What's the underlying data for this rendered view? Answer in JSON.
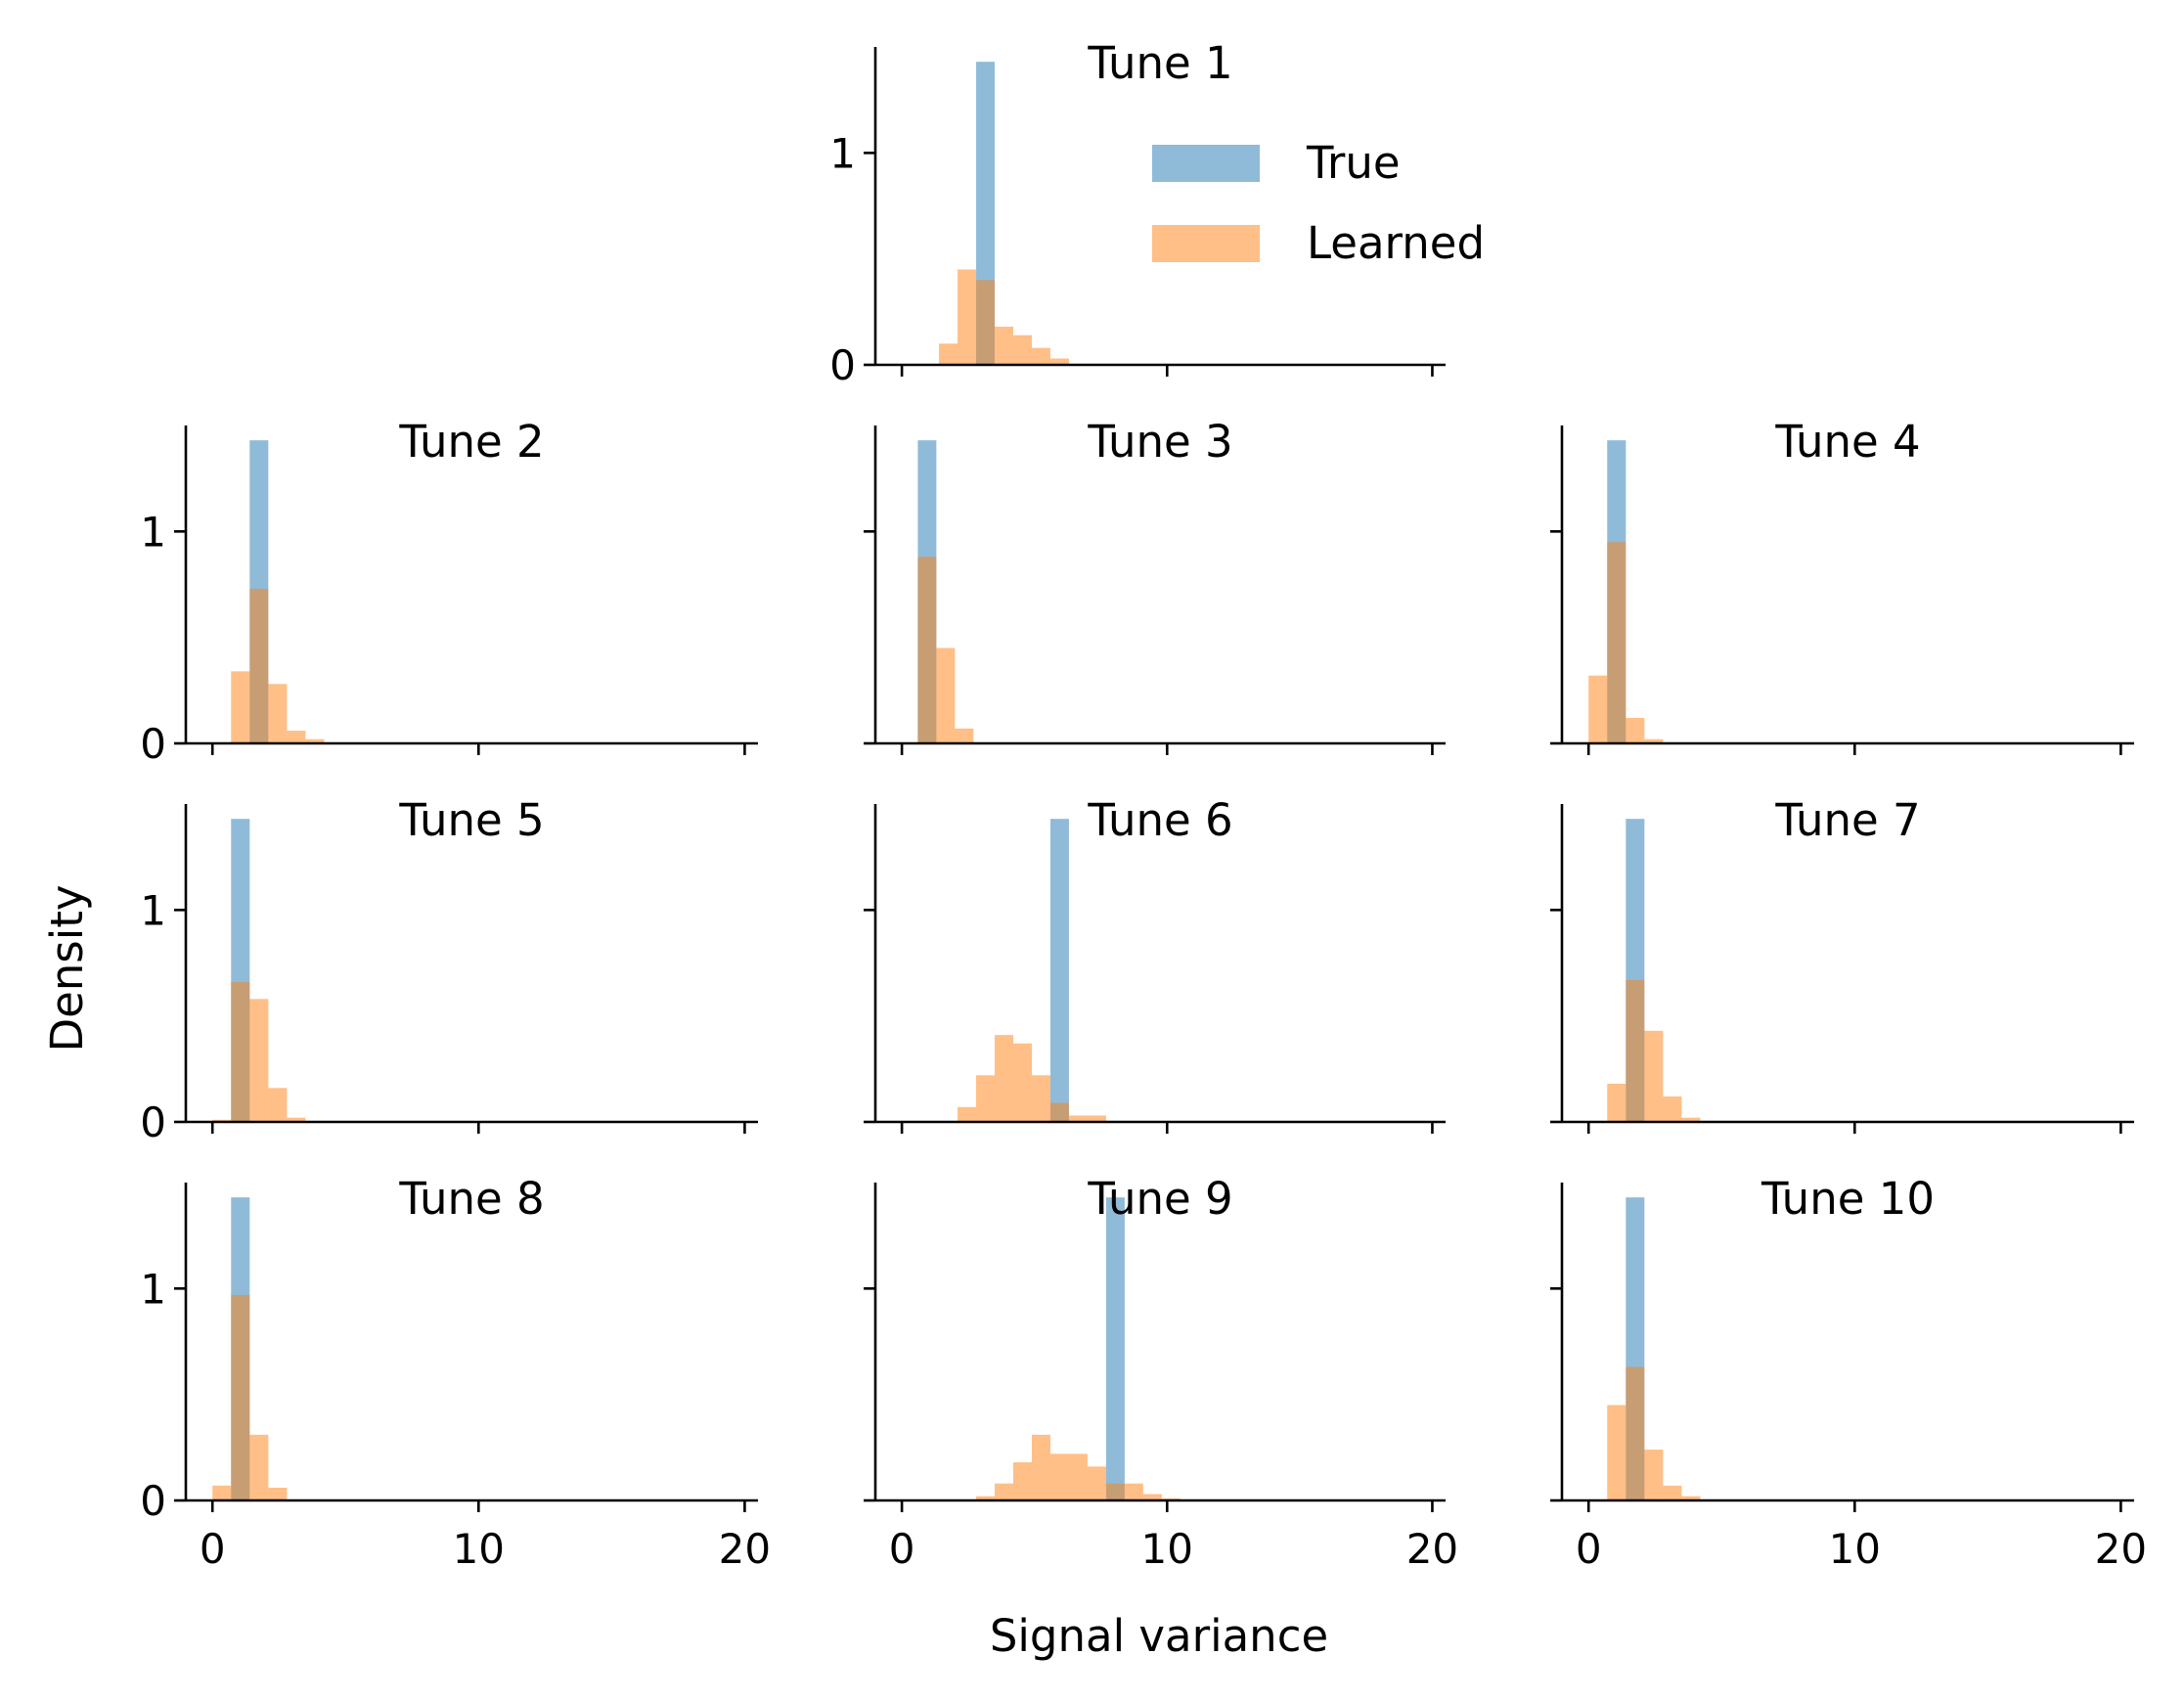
{
  "figure": {
    "xlabel": "Signal variance",
    "ylabel": "Density"
  },
  "legend": {
    "items": [
      {
        "label": "True",
        "color": "#1f77b4"
      },
      {
        "label": "Learned",
        "color": "#ff7f0e"
      }
    ],
    "placement": "upper-right of Tune 1 panel"
  },
  "chart_data": {
    "type": "histogram",
    "shared_axes": {
      "xlim": [
        -1,
        20.5
      ],
      "ylim": [
        0,
        1.5
      ],
      "xticks": [
        0,
        10,
        20
      ],
      "yticks": [
        0,
        1
      ],
      "bin_width": 0.7,
      "grid": false,
      "bar_opacity": 0.5
    },
    "series_colors": {
      "True": "#1f77b4",
      "Learned": "#ff7f0e"
    },
    "panels": [
      {
        "title": "Tune 1",
        "true_bins": [
          {
            "x": 2.8,
            "density": 1.43
          }
        ],
        "learned_bins": [
          [
            1.4,
            0.1
          ],
          [
            2.1,
            0.45
          ],
          [
            2.8,
            0.4
          ],
          [
            3.5,
            0.18
          ],
          [
            4.2,
            0.14
          ],
          [
            4.9,
            0.08
          ],
          [
            5.6,
            0.03
          ]
        ]
      },
      {
        "title": "Tune 2",
        "true_bins": [
          {
            "x": 1.4,
            "density": 1.43
          }
        ],
        "learned_bins": [
          [
            0.7,
            0.34
          ],
          [
            1.4,
            0.73
          ],
          [
            2.1,
            0.28
          ],
          [
            2.8,
            0.06
          ],
          [
            3.5,
            0.02
          ]
        ]
      },
      {
        "title": "Tune 3",
        "true_bins": [
          {
            "x": 0.6,
            "density": 1.43
          }
        ],
        "learned_bins": [
          [
            0.6,
            0.88
          ],
          [
            1.3,
            0.45
          ],
          [
            2.0,
            0.07
          ]
        ]
      },
      {
        "title": "Tune 4",
        "true_bins": [
          {
            "x": 0.7,
            "density": 1.43
          }
        ],
        "learned_bins": [
          [
            0.0,
            0.32
          ],
          [
            0.7,
            0.95
          ],
          [
            1.4,
            0.12
          ],
          [
            2.1,
            0.02
          ]
        ]
      },
      {
        "title": "Tune 5",
        "true_bins": [
          {
            "x": 0.7,
            "density": 1.43
          }
        ],
        "learned_bins": [
          [
            0.0,
            0.01
          ],
          [
            0.7,
            0.66
          ],
          [
            1.4,
            0.58
          ],
          [
            2.1,
            0.16
          ],
          [
            2.8,
            0.02
          ]
        ]
      },
      {
        "title": "Tune 6",
        "true_bins": [
          {
            "x": 5.6,
            "density": 1.43
          }
        ],
        "learned_bins": [
          [
            2.1,
            0.07
          ],
          [
            2.8,
            0.22
          ],
          [
            3.5,
            0.41
          ],
          [
            4.2,
            0.37
          ],
          [
            4.9,
            0.22
          ],
          [
            5.6,
            0.09
          ],
          [
            6.3,
            0.03
          ],
          [
            7.0,
            0.03
          ]
        ]
      },
      {
        "title": "Tune 7",
        "true_bins": [
          {
            "x": 1.4,
            "density": 1.43
          }
        ],
        "learned_bins": [
          [
            0.7,
            0.18
          ],
          [
            1.4,
            0.67
          ],
          [
            2.1,
            0.43
          ],
          [
            2.8,
            0.12
          ],
          [
            3.5,
            0.02
          ]
        ]
      },
      {
        "title": "Tune 8",
        "true_bins": [
          {
            "x": 0.7,
            "density": 1.43
          }
        ],
        "learned_bins": [
          [
            0.0,
            0.07
          ],
          [
            0.7,
            0.97
          ],
          [
            1.4,
            0.31
          ],
          [
            2.1,
            0.06
          ]
        ]
      },
      {
        "title": "Tune 9",
        "true_bins": [
          {
            "x": 7.7,
            "density": 1.43
          }
        ],
        "learned_bins": [
          [
            2.8,
            0.02
          ],
          [
            3.5,
            0.08
          ],
          [
            4.2,
            0.18
          ],
          [
            4.9,
            0.31
          ],
          [
            5.6,
            0.22
          ],
          [
            6.3,
            0.22
          ],
          [
            7.0,
            0.16
          ],
          [
            7.7,
            0.08
          ],
          [
            8.4,
            0.08
          ],
          [
            9.1,
            0.03
          ],
          [
            9.8,
            0.01
          ]
        ]
      },
      {
        "title": "Tune 10",
        "true_bins": [
          {
            "x": 1.4,
            "density": 1.43
          }
        ],
        "learned_bins": [
          [
            0.7,
            0.45
          ],
          [
            1.4,
            0.63
          ],
          [
            2.1,
            0.24
          ],
          [
            2.8,
            0.07
          ],
          [
            3.5,
            0.02
          ]
        ]
      }
    ]
  }
}
